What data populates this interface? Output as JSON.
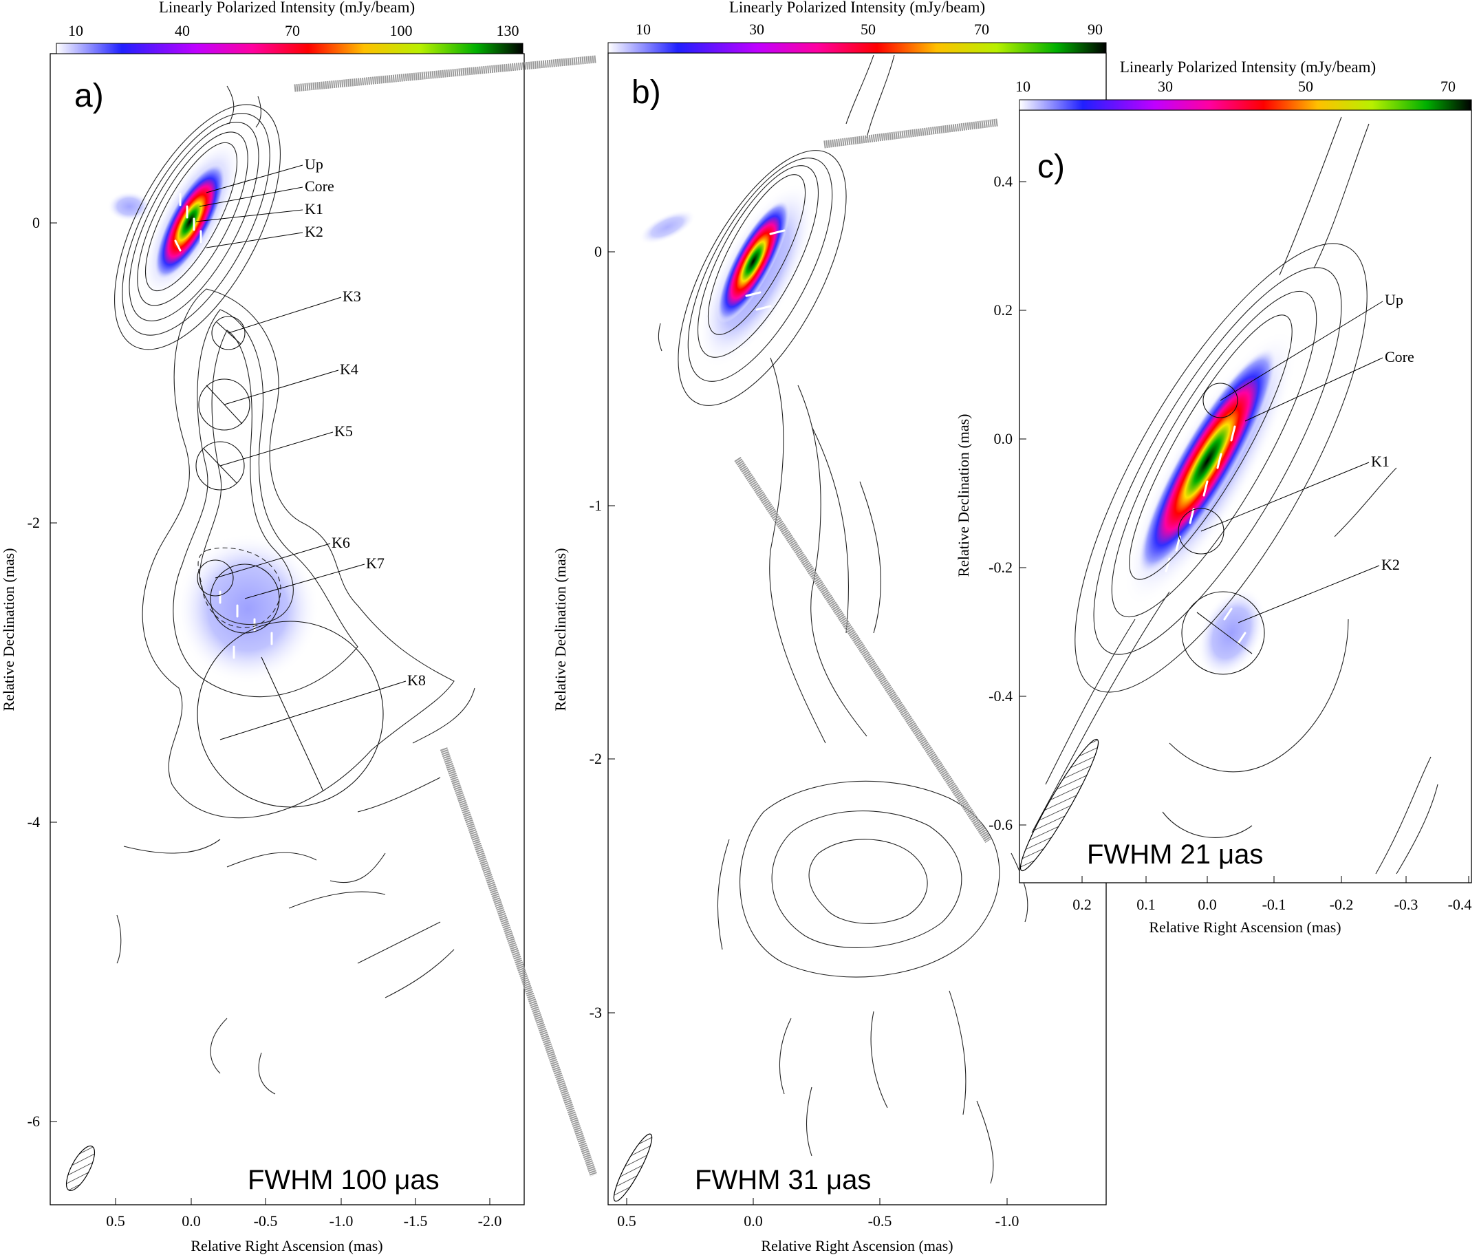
{
  "panels": [
    {
      "letter": "a)",
      "fwhm": "FWHM  100 μas",
      "colorbar": {
        "title": "Linearly Polarized Intensity (mJy/beam)",
        "ticks": [
          "10",
          "40",
          "70",
          "100",
          "130"
        ]
      },
      "xlabel": "Relative Right Ascension (mas)",
      "ylabel": "Relative Declination (mas)",
      "xticks": [
        "0.5",
        "0.0",
        "-0.5",
        "-1.0",
        "-1.5",
        "-2.0"
      ],
      "yticks": [
        "0",
        "-2",
        "-4",
        "-6"
      ],
      "knots": [
        "Up",
        "Core",
        "K1",
        "K2",
        "K3",
        "K4",
        "K5",
        "K6",
        "K7",
        "K8"
      ]
    },
    {
      "letter": "b)",
      "fwhm": "FWHM  31 μas",
      "colorbar": {
        "title": "Linearly Polarized Intensity (mJy/beam)",
        "ticks": [
          "10",
          "30",
          "50",
          "70",
          "90"
        ]
      },
      "xlabel": "Relative Right Ascension (mas)",
      "ylabel": "Relative Declination (mas)",
      "xticks": [
        "0.5",
        "0.0",
        "-0.5",
        "-1.0"
      ],
      "yticks": [
        "0",
        "-1",
        "-2",
        "-3"
      ]
    },
    {
      "letter": "c)",
      "fwhm": "FWHM  21 μas",
      "colorbar": {
        "title": "Linearly Polarized Intensity (mJy/beam)",
        "ticks": [
          "10",
          "30",
          "50",
          "70"
        ]
      },
      "xlabel": "Relative Right Ascension (mas)",
      "ylabel": "Relative Declination (mas)",
      "xticks": [
        "0.2",
        "0.1",
        "0.0",
        "-0.1",
        "-0.2",
        "-0.3",
        "-0.4"
      ],
      "yticks": [
        "0.4",
        "0.2",
        "0.0",
        "-0.2",
        "-0.4",
        "-0.6"
      ],
      "knots": [
        "Up",
        "Core",
        "K1",
        "K2"
      ]
    }
  ],
  "colors": {
    "frame": "#000000",
    "zoom_connector": "#9a9a9a",
    "evpa_vectors": "#ffffff"
  }
}
